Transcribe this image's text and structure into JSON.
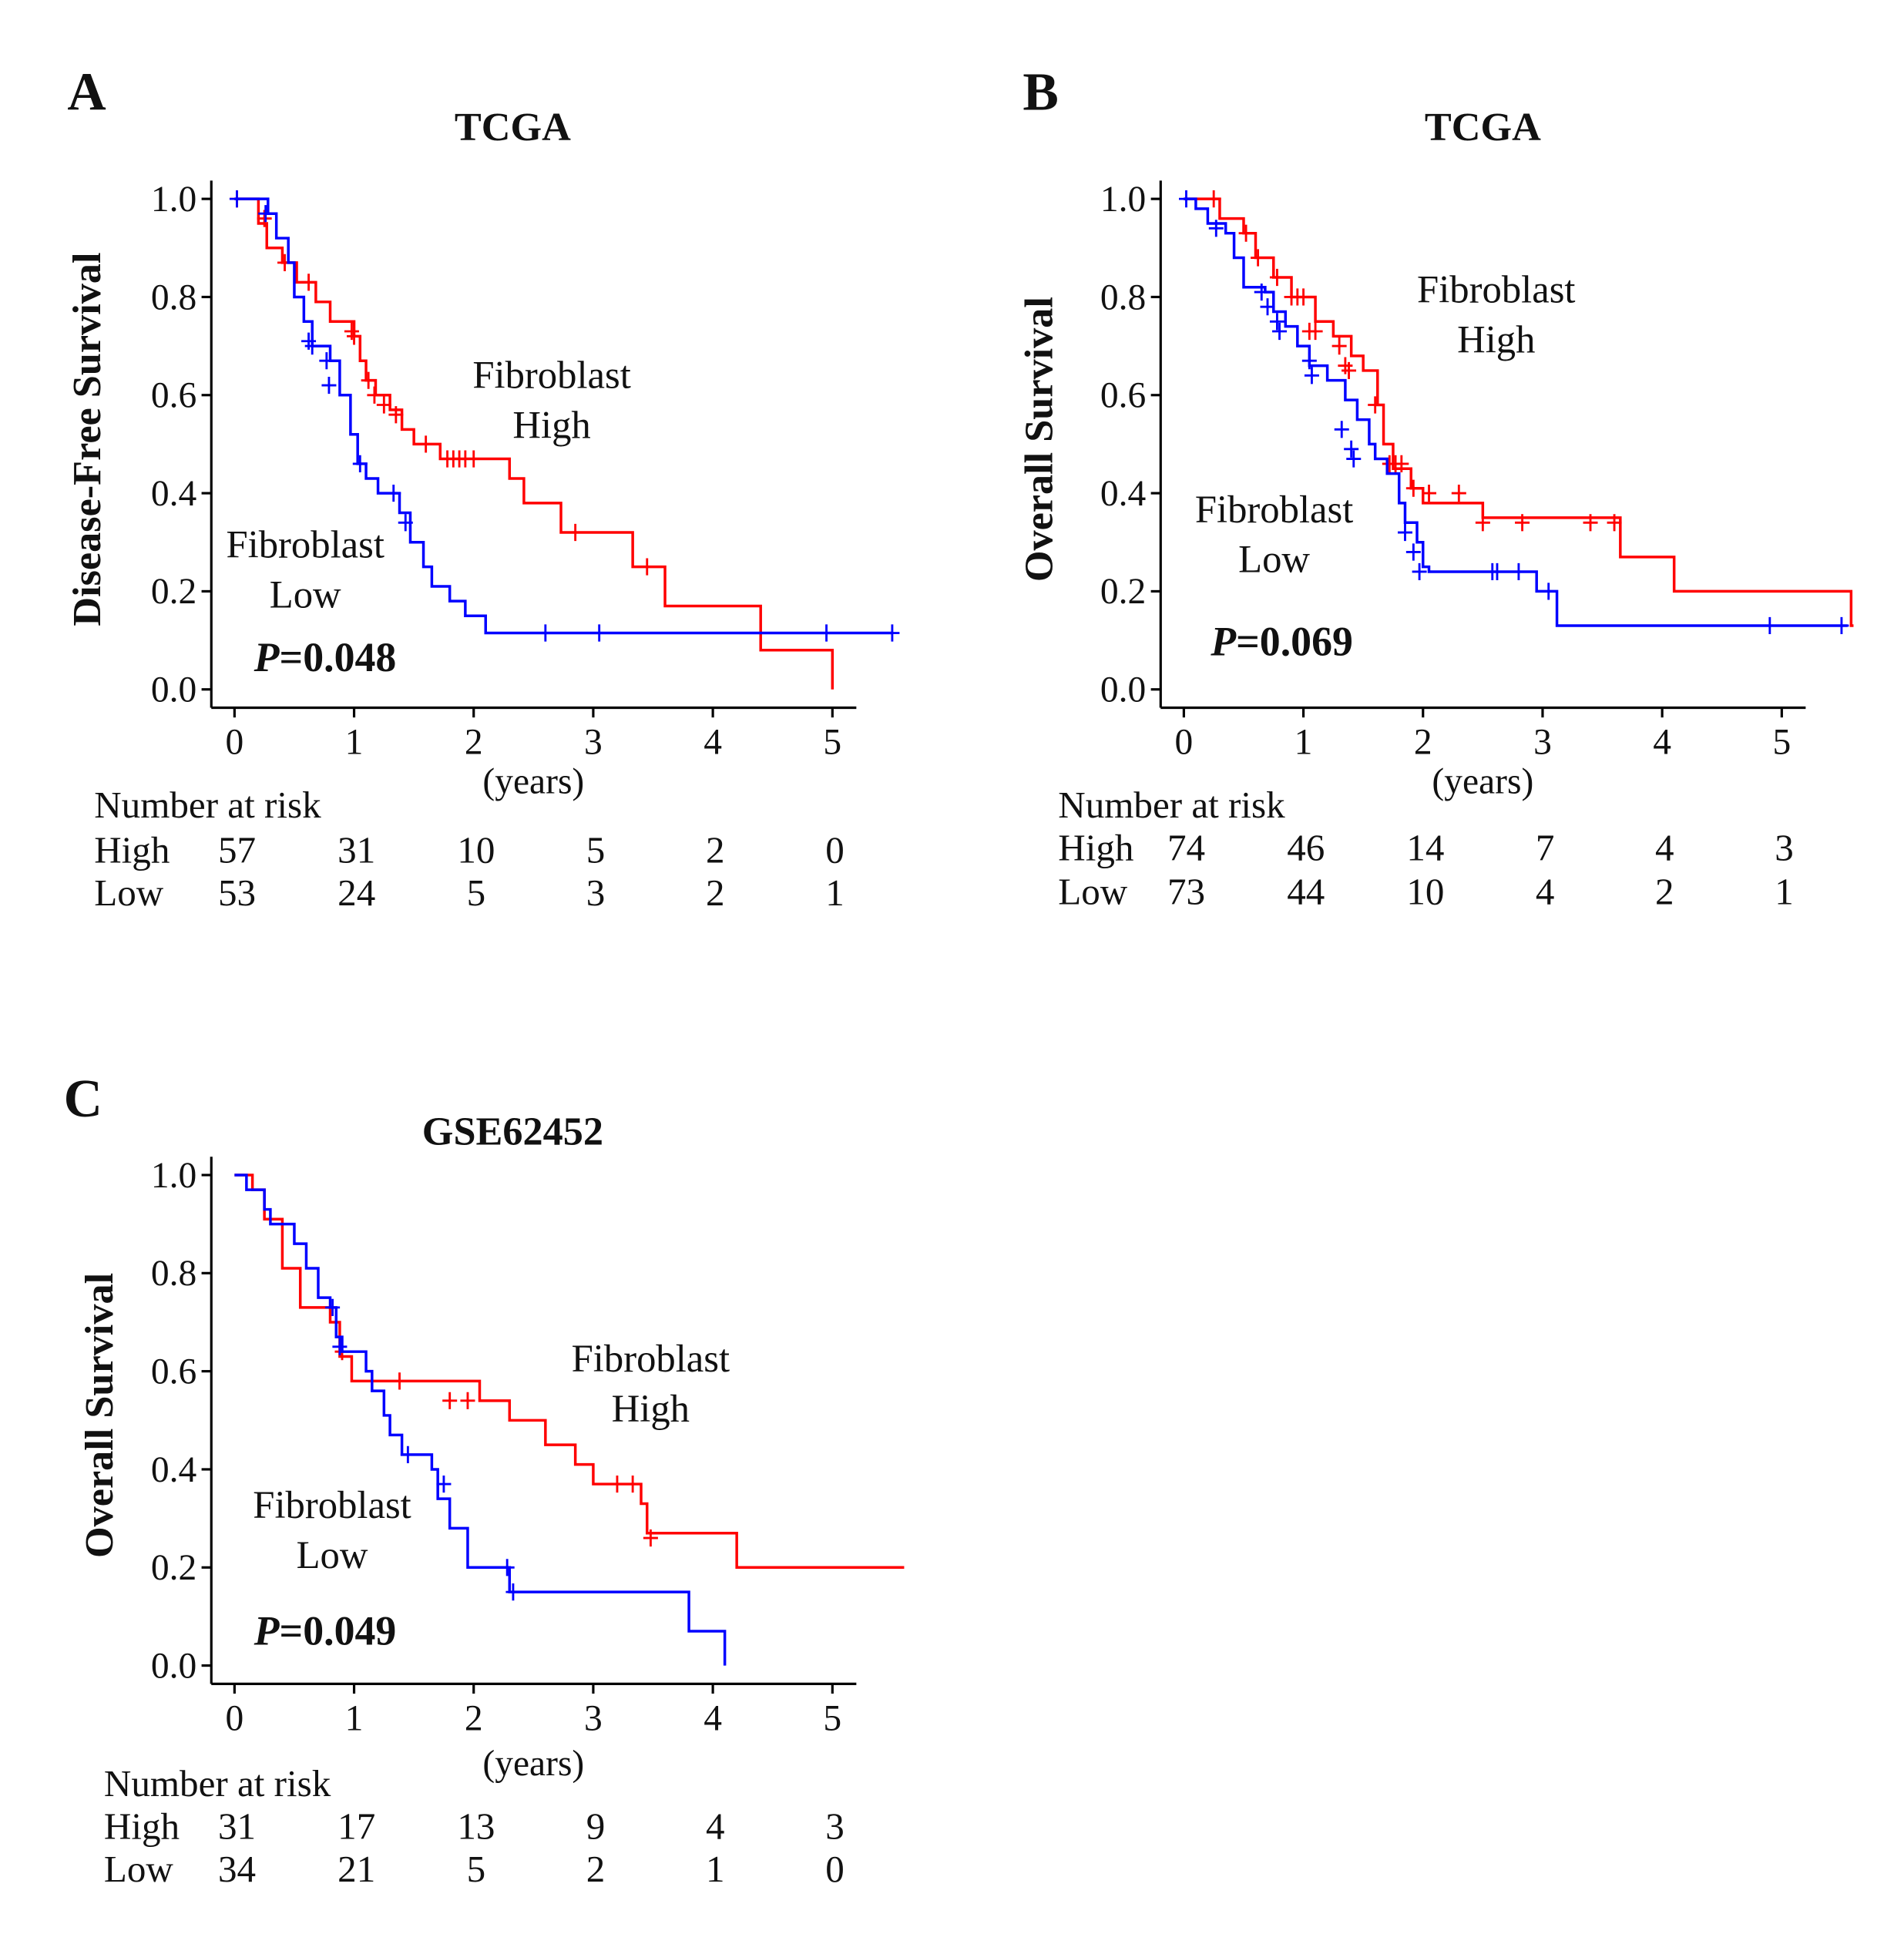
{
  "colors": {
    "high": "#ff0000",
    "low": "#0000ff",
    "axis": "#000000"
  },
  "chart_data": [
    {
      "type": "line",
      "panel_letter": "A",
      "title": "TCGA",
      "ylabel": "Disease-Free Survival",
      "xlabel": "(years)",
      "xlim": [
        0,
        5.5
      ],
      "ylim": [
        0,
        1
      ],
      "xticks": [
        "0",
        "1",
        "2",
        "3",
        "4",
        "5"
      ],
      "yticks": [
        "0.0",
        "0.2",
        "0.4",
        "0.6",
        "0.8",
        "1.0"
      ],
      "group_labels": {
        "high": [
          "Fibroblast",
          "High"
        ],
        "low": [
          "Fibroblast",
          "Low"
        ]
      },
      "p_label": "P",
      "p_value": "=0.048",
      "series": [
        {
          "name": "High",
          "steps": [
            [
              0,
              1
            ],
            [
              0.2,
              0.95
            ],
            [
              0.27,
              0.9
            ],
            [
              0.4,
              0.87
            ],
            [
              0.52,
              0.83
            ],
            [
              0.68,
              0.79
            ],
            [
              0.8,
              0.75
            ],
            [
              1.0,
              0.72
            ],
            [
              1.05,
              0.67
            ],
            [
              1.1,
              0.63
            ],
            [
              1.18,
              0.6
            ],
            [
              1.3,
              0.57
            ],
            [
              1.4,
              0.53
            ],
            [
              1.5,
              0.5
            ],
            [
              1.72,
              0.47
            ],
            [
              2.3,
              0.43
            ],
            [
              2.42,
              0.38
            ],
            [
              2.73,
              0.32
            ],
            [
              3.33,
              0.25
            ],
            [
              3.6,
              0.17
            ],
            [
              4.4,
              0.08
            ],
            [
              5.0,
              0.0
            ]
          ],
          "censored": [
            [
              0.02,
              1
            ],
            [
              0.25,
              0.96
            ],
            [
              0.42,
              0.87
            ],
            [
              0.62,
              0.83
            ],
            [
              0.98,
              0.73
            ],
            [
              1.0,
              0.72
            ],
            [
              1.12,
              0.63
            ],
            [
              1.17,
              0.6
            ],
            [
              1.25,
              0.58
            ],
            [
              1.35,
              0.56
            ],
            [
              1.6,
              0.5
            ],
            [
              1.78,
              0.47
            ],
            [
              1.83,
              0.47
            ],
            [
              1.88,
              0.47
            ],
            [
              1.93,
              0.47
            ],
            [
              2.0,
              0.47
            ],
            [
              2.85,
              0.32
            ],
            [
              3.45,
              0.25
            ]
          ],
          "end": 5.0
        },
        {
          "name": "Low",
          "steps": [
            [
              0,
              1
            ],
            [
              0.28,
              0.97
            ],
            [
              0.35,
              0.92
            ],
            [
              0.45,
              0.87
            ],
            [
              0.5,
              0.8
            ],
            [
              0.58,
              0.75
            ],
            [
              0.65,
              0.7
            ],
            [
              0.8,
              0.67
            ],
            [
              0.88,
              0.6
            ],
            [
              0.97,
              0.52
            ],
            [
              1.03,
              0.46
            ],
            [
              1.1,
              0.43
            ],
            [
              1.2,
              0.4
            ],
            [
              1.38,
              0.36
            ],
            [
              1.47,
              0.3
            ],
            [
              1.58,
              0.25
            ],
            [
              1.65,
              0.21
            ],
            [
              1.8,
              0.18
            ],
            [
              1.93,
              0.15
            ],
            [
              2.1,
              0.115
            ]
          ],
          "censored": [
            [
              0.02,
              1
            ],
            [
              0.26,
              0.97
            ],
            [
              0.62,
              0.71
            ],
            [
              0.65,
              0.7
            ],
            [
              0.77,
              0.67
            ],
            [
              0.79,
              0.62
            ],
            [
              1.05,
              0.46
            ],
            [
              1.33,
              0.4
            ],
            [
              1.43,
              0.34
            ],
            [
              2.6,
              0.115
            ],
            [
              3.05,
              0.115
            ],
            [
              4.95,
              0.115
            ],
            [
              5.5,
              0.115
            ]
          ],
          "end": 5.5
        }
      ],
      "number_at_risk": {
        "header": "Number at risk",
        "rows": [
          {
            "label": "High",
            "values": [
              "57",
              "31",
              "10",
              "5",
              "2",
              "0"
            ]
          },
          {
            "label": "Low",
            "values": [
              "53",
              "24",
              "5",
              "3",
              "2",
              "1"
            ]
          }
        ]
      }
    },
    {
      "type": "line",
      "panel_letter": "B",
      "title": "TCGA",
      "ylabel": "Overall Survival",
      "xlabel": "(years)",
      "xlim": [
        0,
        5.6
      ],
      "ylim": [
        0,
        1
      ],
      "xticks": [
        "0",
        "1",
        "2",
        "3",
        "4",
        "5"
      ],
      "yticks": [
        "0.0",
        "0.2",
        "0.4",
        "0.6",
        "0.8",
        "1.0"
      ],
      "group_labels": {
        "high": [
          "Fibroblast",
          "High"
        ],
        "low": [
          "Fibroblast",
          "Low"
        ]
      },
      "p_label": "P",
      "p_value": "=0.069",
      "series": [
        {
          "name": "High",
          "steps": [
            [
              0,
              1
            ],
            [
              0.3,
              0.96
            ],
            [
              0.5,
              0.93
            ],
            [
              0.6,
              0.88
            ],
            [
              0.75,
              0.84
            ],
            [
              0.9,
              0.8
            ],
            [
              1.1,
              0.75
            ],
            [
              1.25,
              0.72
            ],
            [
              1.4,
              0.68
            ],
            [
              1.5,
              0.65
            ],
            [
              1.62,
              0.58
            ],
            [
              1.67,
              0.5
            ],
            [
              1.75,
              0.45
            ],
            [
              1.9,
              0.41
            ],
            [
              2.0,
              0.38
            ],
            [
              2.5,
              0.35
            ],
            [
              3.65,
              0.27
            ],
            [
              4.1,
              0.2
            ],
            [
              5.58,
              0.13
            ]
          ],
          "censored": [
            [
              0.25,
              1
            ],
            [
              0.52,
              0.93
            ],
            [
              0.62,
              0.88
            ],
            [
              0.78,
              0.84
            ],
            [
              0.9,
              0.8
            ],
            [
              0.95,
              0.8
            ],
            [
              1.0,
              0.8
            ],
            [
              1.05,
              0.73
            ],
            [
              1.1,
              0.73
            ],
            [
              1.3,
              0.7
            ],
            [
              1.35,
              0.66
            ],
            [
              1.38,
              0.65
            ],
            [
              1.6,
              0.58
            ],
            [
              1.72,
              0.46
            ],
            [
              1.77,
              0.46
            ],
            [
              1.82,
              0.46
            ],
            [
              1.92,
              0.41
            ],
            [
              2.05,
              0.4
            ],
            [
              2.3,
              0.4
            ],
            [
              2.5,
              0.34
            ],
            [
              2.83,
              0.34
            ],
            [
              3.4,
              0.34
            ],
            [
              3.6,
              0.34
            ]
          ],
          "end": 5.6
        },
        {
          "name": "Low",
          "steps": [
            [
              0,
              1
            ],
            [
              0.1,
              0.98
            ],
            [
              0.2,
              0.95
            ],
            [
              0.35,
              0.93
            ],
            [
              0.42,
              0.88
            ],
            [
              0.5,
              0.82
            ],
            [
              0.68,
              0.81
            ],
            [
              0.75,
              0.77
            ],
            [
              0.85,
              0.74
            ],
            [
              0.95,
              0.7
            ],
            [
              1.05,
              0.66
            ],
            [
              1.2,
              0.63
            ],
            [
              1.35,
              0.59
            ],
            [
              1.45,
              0.55
            ],
            [
              1.55,
              0.5
            ],
            [
              1.6,
              0.47
            ],
            [
              1.7,
              0.44
            ],
            [
              1.8,
              0.38
            ],
            [
              1.85,
              0.34
            ],
            [
              1.95,
              0.3
            ],
            [
              2.0,
              0.25
            ],
            [
              2.05,
              0.24
            ],
            [
              2.95,
              0.2
            ],
            [
              3.12,
              0.13
            ]
          ],
          "censored": [
            [
              0.02,
              1
            ],
            [
              0.27,
              0.94
            ],
            [
              0.65,
              0.81
            ],
            [
              0.7,
              0.78
            ],
            [
              0.78,
              0.75
            ],
            [
              0.8,
              0.73
            ],
            [
              1.05,
              0.67
            ],
            [
              1.07,
              0.64
            ],
            [
              1.32,
              0.53
            ],
            [
              1.4,
              0.49
            ],
            [
              1.42,
              0.47
            ],
            [
              1.85,
              0.32
            ],
            [
              1.92,
              0.28
            ],
            [
              1.97,
              0.24
            ],
            [
              2.58,
              0.24
            ],
            [
              2.62,
              0.24
            ],
            [
              2.8,
              0.24
            ],
            [
              3.05,
              0.2
            ],
            [
              4.9,
              0.13
            ],
            [
              5.5,
              0.13
            ]
          ],
          "end": 5.55
        }
      ],
      "number_at_risk": {
        "header": "Number at risk",
        "rows": [
          {
            "label": "High",
            "values": [
              "74",
              "46",
              "14",
              "7",
              "4",
              "3"
            ]
          },
          {
            "label": "Low",
            "values": [
              "73",
              "44",
              "10",
              "4",
              "2",
              "1"
            ]
          }
        ]
      }
    },
    {
      "type": "line",
      "panel_letter": "C",
      "title": "GSE62452",
      "ylabel": "Overall Survival",
      "xlabel": "(years)",
      "xlim": [
        0,
        5.6
      ],
      "ylim": [
        0,
        1
      ],
      "xticks": [
        "0",
        "1",
        "2",
        "3",
        "4",
        "5"
      ],
      "yticks": [
        "0.0",
        "0.2",
        "0.4",
        "0.6",
        "0.8",
        "1.0"
      ],
      "group_labels": {
        "high": [
          "Fibroblast",
          "High"
        ],
        "low": [
          "Fibroblast",
          "Low"
        ]
      },
      "p_label": "P",
      "p_value": "=0.049",
      "series": [
        {
          "name": "High",
          "steps": [
            [
              0,
              1
            ],
            [
              0.15,
              0.97
            ],
            [
              0.25,
              0.91
            ],
            [
              0.4,
              0.81
            ],
            [
              0.55,
              0.73
            ],
            [
              0.8,
              0.7
            ],
            [
              0.88,
              0.63
            ],
            [
              0.98,
              0.58
            ],
            [
              2.05,
              0.54
            ],
            [
              2.3,
              0.5
            ],
            [
              2.6,
              0.45
            ],
            [
              2.85,
              0.41
            ],
            [
              3.0,
              0.37
            ],
            [
              3.4,
              0.33
            ],
            [
              3.45,
              0.27
            ],
            [
              4.2,
              0.2
            ]
          ],
          "censored": [
            [
              0.9,
              0.64
            ],
            [
              1.38,
              0.58
            ],
            [
              1.8,
              0.54
            ],
            [
              1.95,
              0.54
            ],
            [
              3.2,
              0.37
            ],
            [
              3.33,
              0.37
            ],
            [
              3.48,
              0.26
            ]
          ],
          "end": 5.6
        },
        {
          "name": "Low",
          "steps": [
            [
              0,
              1
            ],
            [
              0.1,
              0.97
            ],
            [
              0.25,
              0.93
            ],
            [
              0.3,
              0.9
            ],
            [
              0.5,
              0.86
            ],
            [
              0.6,
              0.81
            ],
            [
              0.7,
              0.75
            ],
            [
              0.8,
              0.73
            ],
            [
              0.85,
              0.67
            ],
            [
              0.9,
              0.64
            ],
            [
              1.1,
              0.6
            ],
            [
              1.15,
              0.56
            ],
            [
              1.25,
              0.51
            ],
            [
              1.3,
              0.47
            ],
            [
              1.4,
              0.43
            ],
            [
              1.65,
              0.4
            ],
            [
              1.7,
              0.34
            ],
            [
              1.8,
              0.28
            ],
            [
              1.95,
              0.2
            ],
            [
              2.3,
              0.15
            ],
            [
              3.8,
              0.07
            ],
            [
              4.1,
              0.0
            ]
          ],
          "censored": [
            [
              0.82,
              0.73
            ],
            [
              0.88,
              0.65
            ],
            [
              1.45,
              0.43
            ],
            [
              1.75,
              0.37
            ],
            [
              2.28,
              0.2
            ],
            [
              2.33,
              0.15
            ]
          ],
          "end": 4.1
        }
      ],
      "number_at_risk": {
        "header": "Number at risk",
        "rows": [
          {
            "label": "High",
            "values": [
              "31",
              "17",
              "13",
              "9",
              "4",
              "3"
            ]
          },
          {
            "label": "Low",
            "values": [
              "34",
              "21",
              "5",
              "2",
              "1",
              "0"
            ]
          }
        ]
      }
    }
  ]
}
